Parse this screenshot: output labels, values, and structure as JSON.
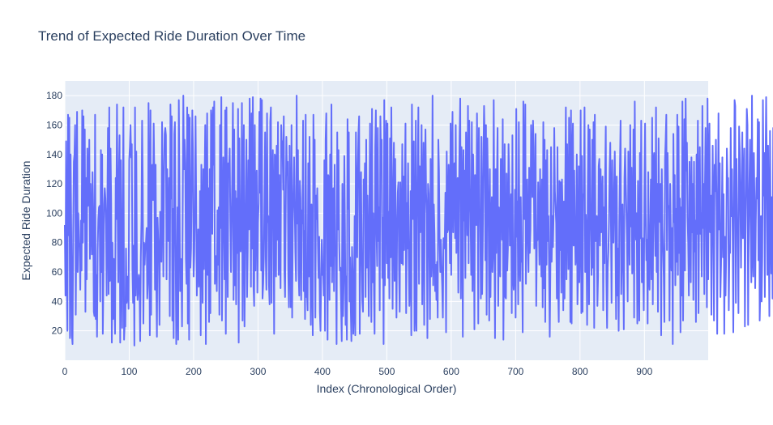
{
  "chart_data": {
    "type": "line",
    "title": "Trend of Expected Ride Duration Over Time",
    "xlabel": "Index (Chronological Order)",
    "ylabel": "Expected Ride Duration",
    "xlim": [
      0,
      999
    ],
    "ylim": [
      0,
      190
    ],
    "xticks": [
      0,
      100,
      200,
      300,
      400,
      500,
      600,
      700,
      800,
      900
    ],
    "yticks": [
      20,
      40,
      60,
      80,
      100,
      120,
      140,
      160,
      180
    ],
    "grid": true,
    "colors": {
      "background": "#e5ecf6",
      "line": "#636efa",
      "grid": "#ffffff",
      "text": "#2a3f5f"
    },
    "series": [
      {
        "name": "Expected Ride Duration",
        "x_start": 0,
        "x_step": 1,
        "values": [
          92,
          44,
          149,
          60,
          20,
          167,
          85,
          165,
          15,
          140,
          88,
          17,
          11,
          87,
          135,
          140,
          160,
          31,
          100,
          169,
          60,
          100,
          80,
          77,
          48,
          95,
          61,
          170,
          80,
          166,
          94,
          157,
          33,
          124,
          55,
          144,
          105,
          113,
          150,
          69,
          120,
          90,
          72,
          128,
          104,
          33,
          30,
          167,
          28,
          58,
          16,
          75,
          96,
          104,
          105,
          40,
          143,
          60,
          140,
          18,
          58,
          106,
          117,
          110,
          92,
          44,
          105,
          158,
          45,
          172,
          54,
          144,
          107,
          12,
          80,
          28,
          69,
          42,
          18,
          124,
          96,
          174,
          100,
          53,
          127,
          153,
          12,
          136,
          69,
          22,
          100,
          172,
          14,
          25,
          23,
          76,
          39,
          45,
          57,
          35,
          136,
          145,
          160,
          138,
          147,
          62,
          39,
          78,
          10,
          172,
          44,
          142,
          61,
          41,
          48,
          58,
          49,
          13,
          70,
          95,
          163,
          121,
          25,
          80,
          65,
          78,
          80,
          90,
          42,
          52,
          175,
          95,
          17,
          170,
          31,
          132,
          133,
          109,
          161,
          126,
          48,
          133,
          56,
          16,
          97,
          83,
          74,
          24,
          101,
          71,
          67,
          162,
          118,
          57,
          124,
          154,
          158,
          153,
          55,
          130,
          89,
          81,
          124,
          30,
          174,
          110,
          166,
          27,
          103,
          15,
          154,
          162,
          79,
          11,
          45,
          104,
          14,
          177,
          120,
          47,
          69,
          67,
          23,
          98,
          180,
          130,
          150,
          134,
          69,
          52,
          172,
          25,
          167,
          14,
          165,
          63,
          76,
          126,
          170,
          140,
          57,
          72,
          103,
          166,
          107,
          44,
          68,
          89,
          50,
          57,
          115,
          17,
          133,
          94,
          39,
          130,
          62,
          119,
          160,
          11,
          103,
          168,
          58,
          117,
          26,
          130,
          32,
          170,
          163,
          86,
          172,
          133,
          176,
          52,
          71,
          70,
          47,
          102,
          65,
          104,
          31,
          160,
          90,
          179,
          27,
          78,
          138,
          113,
          55,
          170,
          18,
          172,
          94,
          43,
          134,
          130,
          144,
          97,
          60,
          91,
          127,
          175,
          41,
          157,
          51,
          115,
          38,
          110,
          73,
          171,
          12,
          151,
          94,
          74,
          85,
          175,
          27,
          123,
          160,
          23,
          69,
          110,
          150,
          43,
          75,
          136,
          89,
          178,
          137,
          50,
          168,
          76,
          179,
          50,
          37,
          160,
          61,
          120,
          129,
          46,
          94,
          107,
          169,
          114,
          178,
          61,
          177,
          42,
          52,
          69,
          109,
          155,
          70,
          48,
          168,
          94,
          98,
          51,
          38,
          162,
          172,
          39,
          119,
          143,
          103,
          18,
          140,
          138,
          57,
          146,
          82,
          162,
          58,
          126,
          82,
          49,
          160,
          145,
          149,
          116,
          166,
          60,
          43,
          99,
          152,
          126,
          135,
          60,
          36,
          146,
          82,
          36,
          160,
          29,
          94,
          116,
          138,
          104,
          73,
          54,
          180,
          93,
          143,
          60,
          44,
          122,
          110,
          41,
          102,
          93,
          163,
          47,
          88,
          28,
          167,
          43,
          47,
          34,
          134,
          57,
          152,
          74,
          24,
          106,
          76,
          17,
          167,
          125,
          150,
          29,
          112,
          96,
          117,
          79,
          56,
          84,
          33,
          20,
          54,
          82,
          58,
          64,
          44,
          136,
          20,
          150,
          168,
          97,
          14,
          126,
          124,
          41,
          140,
          64,
          174,
          53,
          108,
          117,
          47,
          133,
          75,
          70,
          11,
          155,
          89,
          143,
          82,
          61,
          63,
          37,
          13,
          120,
          30,
          53,
          139,
          89,
          24,
          57,
          14,
          164,
          103,
          155,
          40,
          70,
          36,
          13,
          77,
          58,
          18,
          38,
          98,
          17,
          155,
          105,
          70,
          130,
          155,
          166,
          18,
          103,
          128,
          68,
          40,
          33,
          123,
          107,
          134,
          43,
          150,
          63,
          112,
          74,
          30,
          108,
          161,
          82,
          26,
          171,
          53,
          100,
          48,
          18,
          145,
          170,
          87,
          64,
          158,
          81,
          104,
          34,
          166,
          136,
          150,
          56,
          97,
          11,
          177,
          51,
          135,
          163,
          66,
          161,
          56,
          101,
          42,
          151,
          70,
          172,
          101,
          35,
          117,
          148,
          54,
          137,
          82,
          29,
          91,
          114,
          121,
          61,
          33,
          121,
          78,
          66,
          147,
          65,
          125,
          75,
          124,
          161,
          32,
          107,
          76,
          134,
          71,
          37,
          60,
          115,
          17,
          174,
          108,
          96,
          149,
          20,
          32,
          163,
          20,
          95,
          127,
          172,
          52,
          132,
          87,
          108,
          160,
          38,
          104,
          148,
          24,
          121,
          157,
          114,
          99,
          15,
          120,
          113,
          73,
          28,
          137,
          57,
          72,
          180,
          51,
          106,
          86,
          47,
          65,
          41,
          67,
          29,
          150,
          129,
          80,
          60,
          82,
          65,
          50,
          29,
          83,
          76,
          82,
          114,
          19,
          142,
          87,
          89,
          133,
          107,
          66,
          161,
          58,
          135,
          169,
          87,
          128,
          134,
          83,
          160,
          73,
          106,
          124,
          46,
          111,
          152,
          178,
          42,
          145,
          120,
          16,
          143,
          95,
          129,
          56,
          155,
          126,
          85,
          173,
          66,
          163,
          117,
          100,
          58,
          162,
          47,
          140,
          106,
          21,
          126,
          110,
          92,
          168,
          115,
          25,
          158,
          103,
          99,
          42,
          152,
          45,
          80,
          138,
          173,
          151,
          68,
          160,
          31,
          151,
          123,
          96,
          27,
          130,
          43,
          91,
          111,
          60,
          73,
          177,
          86,
          15,
          130,
          73,
          122,
          158,
          37,
          104,
          70,
          57,
          137,
          136,
          82,
          164,
          14,
          76,
          147,
          43,
          42,
          127,
          61,
          76,
          147,
          125,
          78,
          94,
          113,
          32,
          153,
          58,
          48,
          60,
          116,
          29,
          171,
          84,
          108,
          38,
          162,
          67,
          54,
          111,
          67,
          72,
          19,
          176,
          117,
          96,
          174,
          52,
          109,
          123,
          79,
          60,
          131,
          73,
          89,
          160,
          140,
          111,
          163,
          145,
          76,
          93,
          154,
          37,
          81,
          82,
          121,
          93,
          65,
          130,
          91,
          57,
          123,
          36,
          162,
          49,
          150,
          26,
          136,
          65,
          143,
          81,
          98,
          59,
          16,
          63,
          145,
          67,
          98,
          77,
          101,
          158,
          115,
          105,
          93,
          42,
          145,
          49,
          26,
          122,
          75,
          121,
          46,
          123,
          100,
          34,
          108,
          42,
          114,
          172,
          55,
          147,
          105,
          62,
          165,
          114,
          26,
          170,
          25,
          139,
          161,
          78,
          129,
          92,
          65,
          73,
          140,
          38,
          60,
          132,
          53,
          95,
          170,
          32,
          139,
          33,
          113,
          111,
          172,
          60,
          99,
          84,
          24,
          114,
          160,
          38,
          157,
          106,
          88,
          58,
          150,
          63,
          162,
          22,
          167,
          81,
          89,
          98,
          37,
          57,
          132,
          137,
          78,
          130,
          87,
          105,
          125,
          34,
          104,
          66,
          125,
          159,
          55,
          22,
          63,
          74,
          94,
          130,
          148,
          93,
          39,
          136,
          81,
          80,
          119,
          142,
          87,
          28,
          125,
          44,
          76,
          20,
          94,
          132,
          163,
          45,
          69,
          106,
          70,
          21,
          124,
          144,
          121,
          101,
          81,
          40,
          142,
          109,
          65,
          160,
          91,
          131,
          59,
          71,
          157,
          29,
          176,
          103,
          82,
          100,
          25,
          122,
          62,
          27,
          141,
          83,
          163,
          53,
          83,
          62,
          34,
          113,
          161,
          100,
          68,
          82,
          25,
          128,
          59,
          48,
          90,
          123,
          55,
          165,
          38,
          135,
          141,
          96,
          71,
          172,
          60,
          120,
          33,
          151,
          98,
          94,
          120,
          17,
          130,
          91,
          75,
          57,
          26,
          137,
          150,
          167,
          75,
          141,
          104,
          105,
          27,
          120,
          87,
          61,
          90,
          11,
          154,
          94,
          126,
          51,
          103,
          67,
          167,
          58,
          159,
          73,
          110,
          19,
          104,
          44,
          176,
          27,
          90,
          164,
          61,
          178,
          129,
          148,
          97,
          79,
          44,
          135,
          103,
          53,
          138,
          87,
          120,
          41,
          135,
          74,
          95,
          26,
          140,
          86,
          163,
          32,
          107,
          145,
          86,
          100,
          57,
          173,
          90,
          120,
          45,
          120,
          158,
          98,
          36,
          178,
          55,
          133,
          161,
          87,
          112,
          31,
          96,
          146,
          96,
          27,
          133,
          115,
          150,
          101,
          18,
          96,
          168,
          89,
          134,
          43,
          65,
          94,
          138,
          70,
          113,
          18,
          84,
          44,
          73,
          144,
          124,
          124,
          34,
          78,
          73,
          158,
          98,
          130,
          85,
          19,
          95,
          177,
          173,
          39,
          137,
          95,
          88,
          32,
          159,
          143,
          105,
          63,
          117,
          155,
          83,
          116,
          144,
          23,
          84,
          117,
          171,
          160,
          24,
          88,
          121,
          150,
          88,
          53,
          180,
          72,
          57,
          141,
          106,
          49,
          95,
          124,
          110,
          164,
          68,
          162,
          27,
          49,
          98,
          40,
          70,
          177,
          112,
          141,
          43,
          131,
          179,
          130,
          58,
          146,
          87,
          30,
          156,
          95,
          59,
          111,
          42,
          158,
          21,
          160,
          138,
          11,
          95,
          40,
          87,
          147
        ]
      }
    ]
  }
}
